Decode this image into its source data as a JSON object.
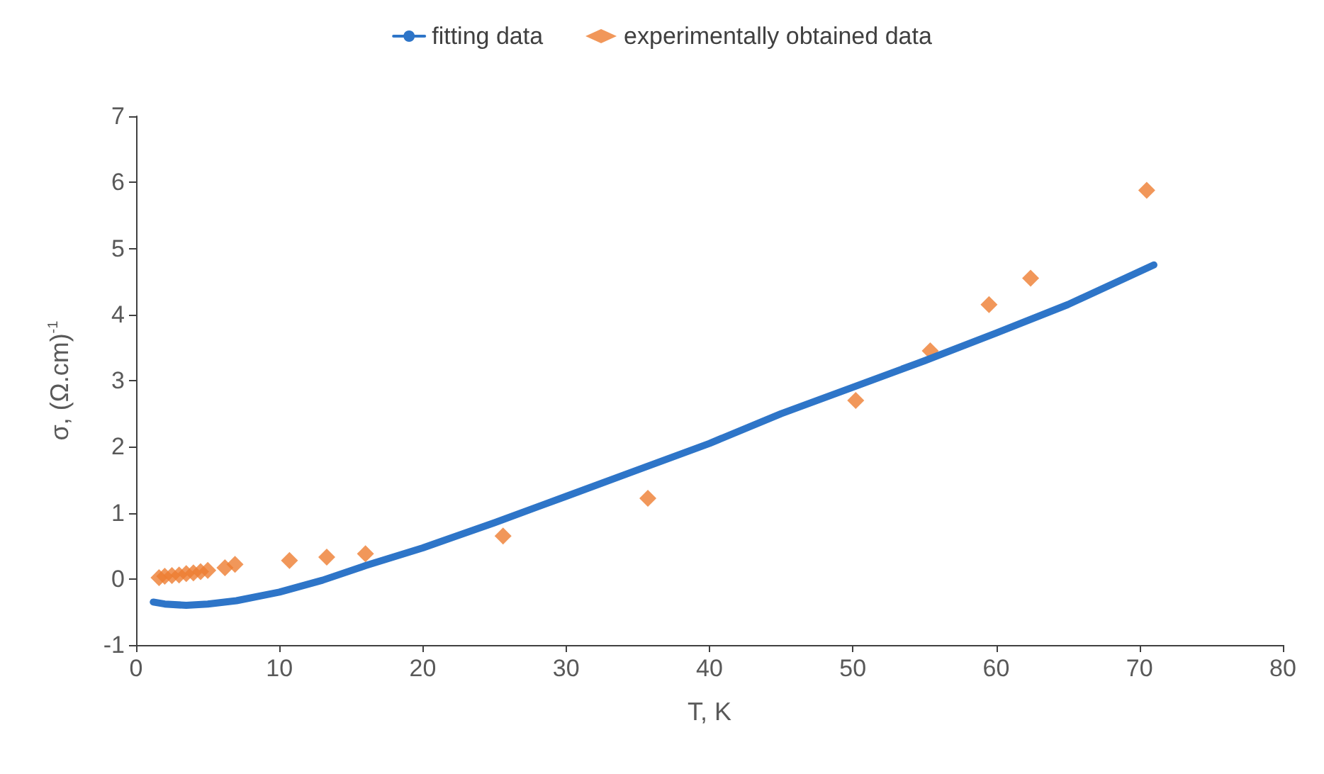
{
  "chart_data": {
    "type": "scatter",
    "xlabel": "T, K",
    "ylabel": "σ, (Ω.cm)$^{-1}$",
    "xlim": [
      0,
      80
    ],
    "xticks": [
      0,
      10,
      20,
      30,
      40,
      50,
      60,
      70,
      80
    ],
    "ylim": [
      -1,
      7
    ],
    "yticks": [
      -1,
      0,
      1,
      2,
      3,
      4,
      5,
      6,
      7
    ],
    "grid": false,
    "legend": "top",
    "series": [
      {
        "name": "fitting data",
        "type": "line",
        "color": "#2e75c8",
        "marker": "none",
        "line_style": "solid",
        "x": [
          1.2,
          2,
          3.5,
          5,
          7,
          10,
          13,
          16,
          20,
          25,
          30,
          35,
          40,
          45,
          50,
          55,
          60,
          65,
          71
        ],
        "values": [
          -0.35,
          -0.38,
          -0.4,
          -0.38,
          -0.33,
          -0.2,
          -0.02,
          0.2,
          0.47,
          0.85,
          1.25,
          1.65,
          2.05,
          2.5,
          2.9,
          3.3,
          3.72,
          4.15,
          4.75
        ]
      },
      {
        "name": "experimentally obtained data",
        "type": "scatter",
        "color": "#ed7d31",
        "marker": "diamond",
        "x": [
          1.6,
          2.0,
          2.5,
          3.0,
          3.5,
          4.0,
          4.5,
          5.0,
          6.2,
          6.9,
          10.7,
          13.3,
          16,
          25.6,
          35.7,
          50.2,
          55.4,
          59.5,
          62.4,
          70.5
        ],
        "values": [
          0.02,
          0.04,
          0.05,
          0.06,
          0.08,
          0.09,
          0.11,
          0.13,
          0.17,
          0.22,
          0.28,
          0.33,
          0.38,
          0.65,
          1.22,
          2.7,
          3.45,
          4.15,
          4.55,
          5.88
        ]
      }
    ]
  }
}
